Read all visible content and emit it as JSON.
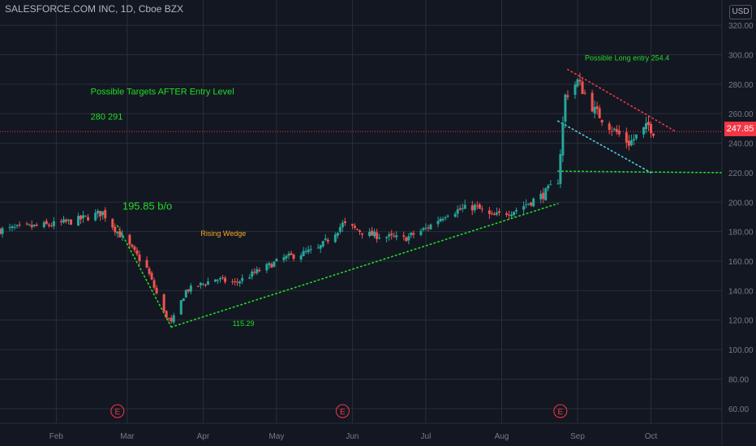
{
  "header": {
    "symbol_title": "SALESFORCE.COM INC, 1D, Cboe BZX",
    "currency": "USD"
  },
  "price_tag": "247.85",
  "colors": {
    "background": "#131722",
    "grid": "#2a2e39",
    "up": "#26a69a",
    "down": "#ef5350",
    "annotation_green": "#22dd22",
    "annotation_orange": "#f5a623",
    "annotation_red": "#f23645",
    "annotation_cyan": "#4dd0e1",
    "axis_text": "#787b86"
  },
  "chart_data": {
    "type": "candlestick",
    "title": "SALESFORCE.COM INC, 1D, Cboe BZX",
    "ylim": [
      50,
      325
    ],
    "y_ticks": [
      60,
      80,
      100,
      120,
      140,
      160,
      180,
      200,
      220,
      240,
      260,
      280,
      300,
      320
    ],
    "y_tick_labels": [
      "60.00",
      "80.00",
      "100.00",
      "120.00",
      "140.00",
      "160.00",
      "180.00",
      "200.00",
      "220.00",
      "240.00",
      "260.00",
      "280.00",
      "300.00",
      "320.00"
    ],
    "x_tick_labels": [
      "Feb",
      "Mar",
      "Apr",
      "May",
      "Jun",
      "Jul",
      "Aug",
      "Sep",
      "Oct"
    ],
    "x_tick_dates": [
      "2020-02-01",
      "2020-03-01",
      "2020-04-01",
      "2020-05-01",
      "2020-06-01",
      "2020-07-01",
      "2020-08-01",
      "2020-09-01",
      "2020-10-01"
    ],
    "x_range_dates": [
      "2020-01-09",
      "2020-10-30"
    ],
    "grid": true,
    "last_price": 247.85,
    "earnings_markers": [
      {
        "label": "E",
        "date": "2020-02-26"
      },
      {
        "label": "E",
        "date": "2020-05-28"
      },
      {
        "label": "E",
        "date": "2020-08-25"
      }
    ],
    "close_path": [
      {
        "date": "2020-01-09",
        "close": 181
      },
      {
        "date": "2020-01-20",
        "close": 183
      },
      {
        "date": "2020-02-01",
        "close": 185
      },
      {
        "date": "2020-02-10",
        "close": 188
      },
      {
        "date": "2020-02-20",
        "close": 193
      },
      {
        "date": "2020-02-24",
        "close": 184
      },
      {
        "date": "2020-03-02",
        "close": 170
      },
      {
        "date": "2020-03-09",
        "close": 155
      },
      {
        "date": "2020-03-16",
        "close": 125
      },
      {
        "date": "2020-03-19",
        "close": 118
      },
      {
        "date": "2020-03-25",
        "close": 140
      },
      {
        "date": "2020-04-06",
        "close": 148
      },
      {
        "date": "2020-04-14",
        "close": 145
      },
      {
        "date": "2020-04-22",
        "close": 152
      },
      {
        "date": "2020-05-04",
        "close": 162
      },
      {
        "date": "2020-05-18",
        "close": 168
      },
      {
        "date": "2020-05-28",
        "close": 185
      },
      {
        "date": "2020-06-08",
        "close": 178
      },
      {
        "date": "2020-06-22",
        "close": 175
      },
      {
        "date": "2020-07-01",
        "close": 182
      },
      {
        "date": "2020-07-10",
        "close": 193
      },
      {
        "date": "2020-07-21",
        "close": 197
      },
      {
        "date": "2020-07-28",
        "close": 190
      },
      {
        "date": "2020-08-07",
        "close": 195
      },
      {
        "date": "2020-08-18",
        "close": 205
      },
      {
        "date": "2020-08-24",
        "close": 215
      },
      {
        "date": "2020-08-27",
        "close": 272
      },
      {
        "date": "2020-09-01",
        "close": 282
      },
      {
        "date": "2020-09-08",
        "close": 262
      },
      {
        "date": "2020-09-15",
        "close": 250
      },
      {
        "date": "2020-09-22",
        "close": 240
      },
      {
        "date": "2020-09-30",
        "close": 252
      },
      {
        "date": "2020-10-02",
        "close": 247.85
      }
    ],
    "annotations": [
      {
        "text": "Possible Targets AFTER Entry Level",
        "date": "2020-02-15",
        "price": 273,
        "color": "#22dd22",
        "size": 11
      },
      {
        "text": "280  291",
        "date": "2020-02-15",
        "price": 256,
        "color": "#22dd22",
        "size": 11
      },
      {
        "text": "195.85 b/o",
        "date": "2020-02-28",
        "price": 195,
        "color": "#22dd22",
        "size": 13
      },
      {
        "text": "Rising Wedge",
        "date": "2020-03-31",
        "price": 177,
        "color": "#f5a623",
        "size": 9
      },
      {
        "text": "115.29",
        "date": "2020-04-13",
        "price": 116,
        "color": "#22dd22",
        "size": 9
      },
      {
        "text": "Possible Long entry 254.4",
        "date": "2020-09-04",
        "price": 296,
        "color": "#22dd22",
        "size": 9
      }
    ],
    "trendlines": [
      {
        "name": "wedge-lower",
        "color": "#22dd22",
        "points": [
          [
            "2020-03-19",
            115.29
          ],
          [
            "2020-08-24",
            199
          ]
        ]
      },
      {
        "name": "drop-line",
        "color": "#22dd22",
        "points": [
          [
            "2020-02-26",
            184
          ],
          [
            "2020-03-19",
            115.29
          ]
        ]
      },
      {
        "name": "support",
        "color": "#22dd22",
        "points": [
          [
            "2020-08-24",
            221
          ],
          [
            "2020-10-30",
            220
          ]
        ]
      },
      {
        "name": "channel-lower",
        "color": "#4dd0e1",
        "points": [
          [
            "2020-08-24",
            255
          ],
          [
            "2020-10-01",
            220
          ]
        ]
      },
      {
        "name": "channel-upper",
        "color": "#f23645",
        "points": [
          [
            "2020-08-28",
            290
          ],
          [
            "2020-10-11",
            248
          ]
        ]
      }
    ]
  }
}
